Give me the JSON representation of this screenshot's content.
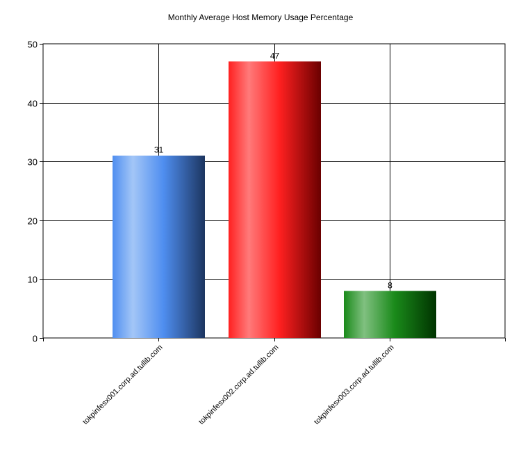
{
  "chart_data": {
    "type": "bar",
    "title": "Monthly Average Host Memory Usage Percentage",
    "xlabel": "",
    "ylabel": "",
    "categories": [
      "tokpinfesx001.corp.ad.tullib.com",
      "tokpinfesx002.corp.ad.tullib.com",
      "tokpinfesx003.corp.ad.tullib.com"
    ],
    "values": [
      31,
      47,
      8
    ],
    "data_labels": [
      "31",
      "47",
      "8"
    ],
    "ylim": [
      0,
      50
    ],
    "yticks": [
      0,
      10,
      20,
      30,
      40,
      50
    ],
    "ytick_labels": [
      "0",
      "10",
      "20",
      "30",
      "40",
      "50"
    ],
    "grid": true,
    "legend": "none",
    "bar_colors": [
      {
        "light": "#a3c6f7",
        "base": "#4f8ef0",
        "dark": "#1c3560"
      },
      {
        "light": "#ff7a7a",
        "base": "#ff2020",
        "dark": "#6a0000"
      },
      {
        "light": "#80c080",
        "base": "#1a8a1a",
        "dark": "#003300"
      }
    ]
  }
}
